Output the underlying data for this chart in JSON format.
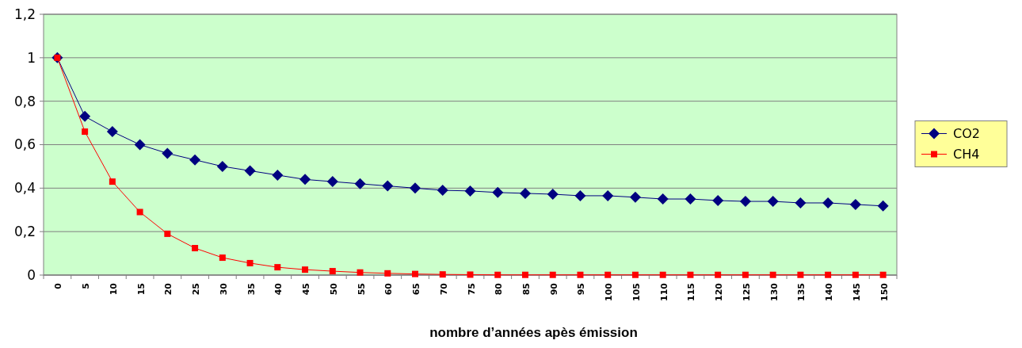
{
  "chart_data": {
    "type": "line",
    "xlabel": "nombre d’années apès émission",
    "categories": [
      "0",
      "5",
      "10",
      "15",
      "20",
      "25",
      "30",
      "35",
      "40",
      "45",
      "50",
      "55",
      "60",
      "65",
      "70",
      "75",
      "80",
      "85",
      "90",
      "95",
      "100",
      "105",
      "110",
      "115",
      "120",
      "125",
      "130",
      "135",
      "140",
      "145",
      "150"
    ],
    "series": [
      {
        "name": "CO2",
        "color": "#000080",
        "marker": "diamond",
        "values": [
          1,
          0.73,
          0.66,
          0.6,
          0.56,
          0.53,
          0.5,
          0.48,
          0.46,
          0.44,
          0.43,
          0.42,
          0.41,
          0.4,
          0.39,
          0.387,
          0.38,
          0.376,
          0.372,
          0.365,
          0.365,
          0.358,
          0.35,
          0.35,
          0.343,
          0.339,
          0.339,
          0.332,
          0.332,
          0.325,
          0.318
        ]
      },
      {
        "name": "CH4",
        "color": "#ff0000",
        "marker": "square",
        "values": [
          1,
          0.66,
          0.43,
          0.29,
          0.19,
          0.124,
          0.08,
          0.055,
          0.036,
          0.025,
          0.018,
          0.012,
          0.008,
          0.005,
          0.003,
          0.002,
          0.001,
          0.001,
          0.001,
          0.001,
          0.001,
          0.001,
          0.001,
          0.001,
          0.001,
          0.001,
          0.001,
          0.001,
          0.001,
          0.001,
          0.001
        ]
      }
    ],
    "ylim": [
      0,
      1.2
    ],
    "yticks": [
      {
        "value": 0,
        "label": "0"
      },
      {
        "value": 0.2,
        "label": "0,2"
      },
      {
        "value": 0.4,
        "label": "0,4"
      },
      {
        "value": 0.6,
        "label": "0,6"
      },
      {
        "value": 0.8,
        "label": "0,8"
      },
      {
        "value": 1,
        "label": "1"
      },
      {
        "value": 1.2,
        "label": "1,2"
      }
    ],
    "grid": "y",
    "legend": "right"
  }
}
